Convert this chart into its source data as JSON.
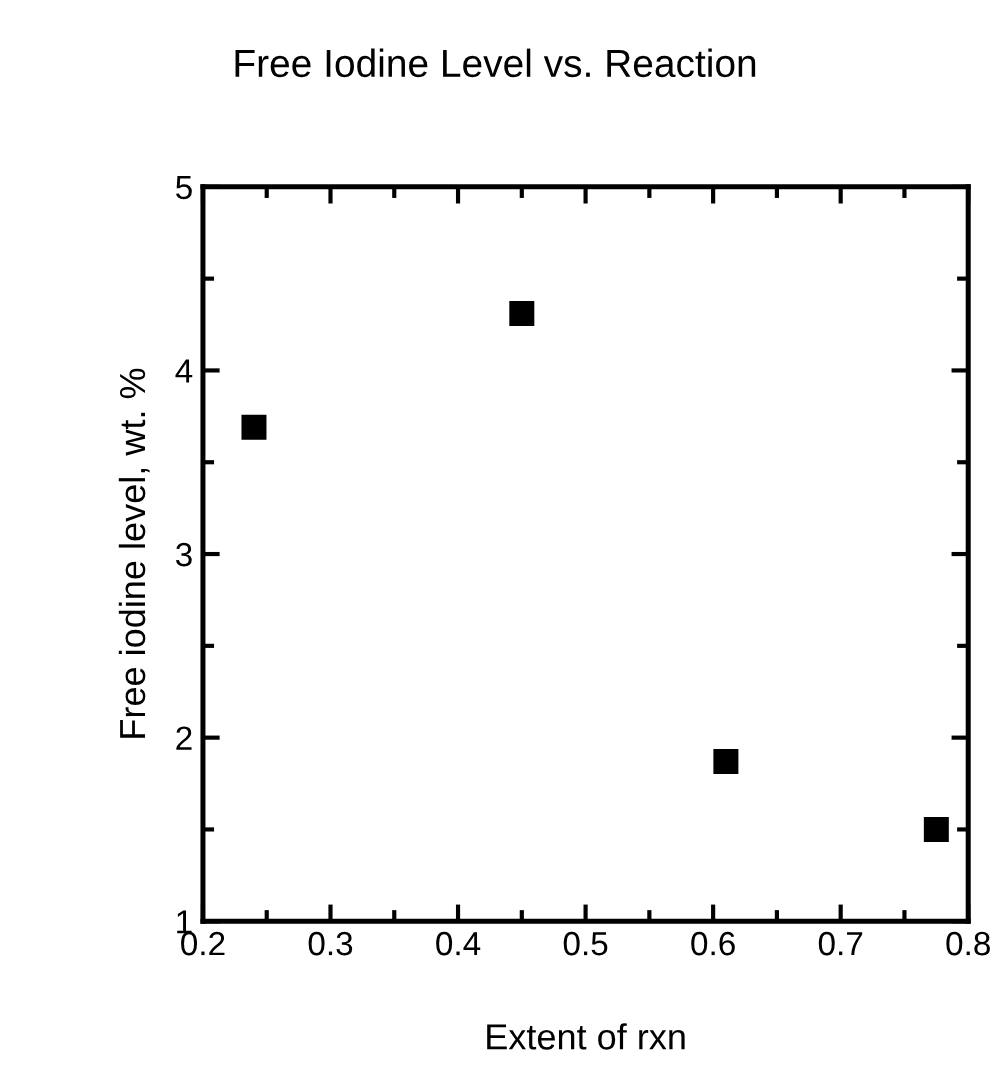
{
  "chart_data": {
    "type": "scatter",
    "title": "Free Iodine Level vs. Reaction",
    "xlabel": "Extent of rxn",
    "ylabel": "Free iodine level, wt. %",
    "series": [
      {
        "color": "#000000",
        "x": [
          0.24,
          0.45,
          0.61,
          0.775
        ],
        "values": [
          3.69,
          4.31,
          1.87,
          1.5
        ]
      }
    ],
    "xlim": [
      0.2,
      0.8
    ],
    "xticks": [
      0.2,
      0.3,
      0.4,
      0.5,
      0.6,
      0.7,
      0.8
    ],
    "ylim": [
      1,
      5
    ],
    "yticks": [
      1,
      2,
      3,
      4,
      5
    ],
    "marker": "square",
    "grid": false,
    "legend": false
  }
}
